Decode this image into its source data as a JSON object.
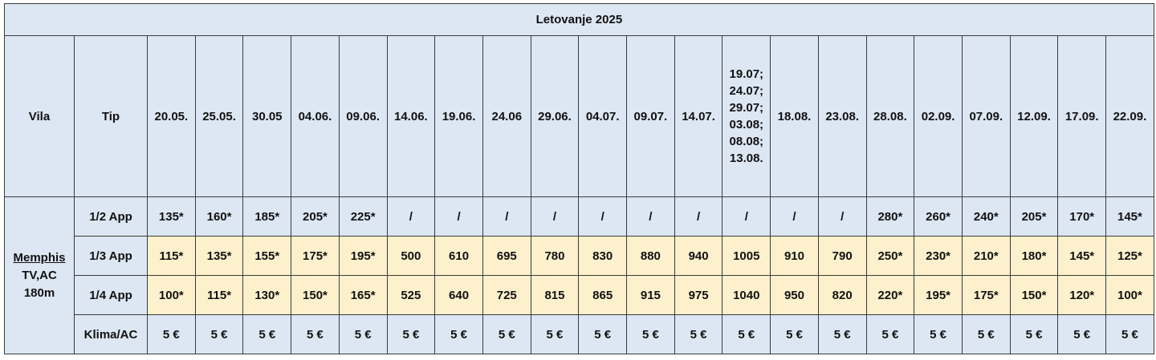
{
  "table": {
    "title": "Letovanje 2025",
    "headers": [
      "Vila",
      "Tip",
      "20.05.",
      "25.05.",
      "30.05",
      "04.06.",
      "09.06.",
      "14.06.",
      "19.06.",
      "24.06",
      "29.06.",
      "04.07.",
      "09.07.",
      "14.07.",
      "19.07; 24.07; 29.07; 03.08; 08.08; 13.08.",
      "18.08.",
      "23.08.",
      "28.08.",
      "02.09.",
      "07.09.",
      "12.09.",
      "17.09.",
      "22.09."
    ],
    "vila": [
      "Memphis",
      "TV,AC",
      "180m"
    ],
    "rows": [
      {
        "type": "1/2 App",
        "values": [
          "135*",
          "160*",
          "185*",
          "205*",
          "225*",
          "/",
          "/",
          "/",
          "/",
          "/",
          "/",
          "/",
          "/",
          "/",
          "/",
          "280*",
          "260*",
          "240*",
          "205*",
          "170*",
          "145*"
        ]
      },
      {
        "type": "1/3 App",
        "values": [
          "115*",
          "135*",
          "155*",
          "175*",
          "195*",
          "500",
          "610",
          "695",
          "780",
          "830",
          "880",
          "940",
          "1005",
          "910",
          "790",
          "250*",
          "230*",
          "210*",
          "180*",
          "145*",
          "125*"
        ]
      },
      {
        "type": "1/4 App",
        "values": [
          "100*",
          "115*",
          "130*",
          "150*",
          "165*",
          "525",
          "640",
          "725",
          "815",
          "865",
          "915",
          "975",
          "1040",
          "950",
          "820",
          "220*",
          "195*",
          "175*",
          "150*",
          "120*",
          "100*"
        ]
      },
      {
        "type": "Klima/AC",
        "values": [
          "5 €",
          "5 €",
          "5 €",
          "5 €",
          "5 €",
          "5 €",
          "5 €",
          "5 €",
          "5 €",
          "5 €",
          "5 €",
          "5 €",
          "5 €",
          "5 €",
          "5 €",
          "5 €",
          "5 €",
          "5 €",
          "5 €",
          "5 €",
          "5 €"
        ]
      }
    ]
  }
}
